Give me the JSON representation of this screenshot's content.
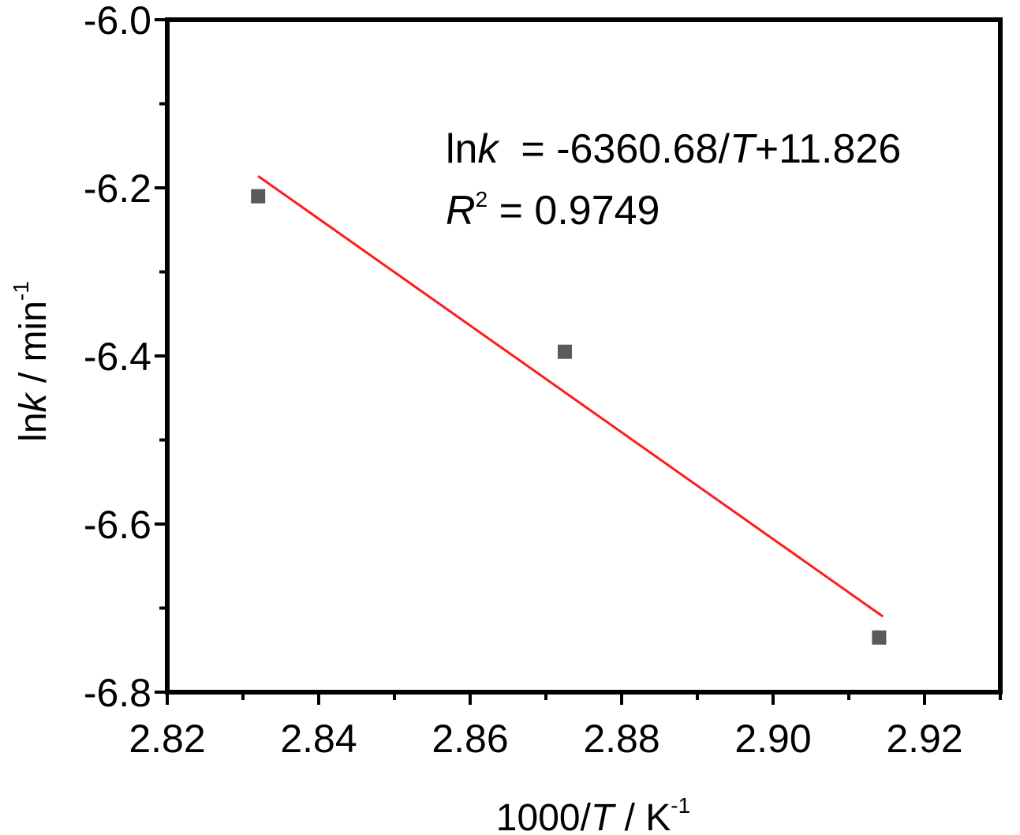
{
  "chart_data": {
    "type": "scatter",
    "title": "",
    "xlabel": {
      "prefix": "1000/",
      "var": "T",
      "unit": " / K",
      "sup": "-1"
    },
    "ylabel": {
      "prefix": "ln",
      "var": "k",
      "unit": " / min",
      "sup": "-1"
    },
    "xlim": [
      2.82,
      2.93
    ],
    "ylim": [
      -6.8,
      -6.0
    ],
    "x_ticks": [
      2.82,
      2.84,
      2.86,
      2.88,
      2.9,
      2.92
    ],
    "x_tick_labels": [
      "2.82",
      "2.84",
      "2.86",
      "2.88",
      "2.90",
      "2.92"
    ],
    "y_ticks": [
      -6.0,
      -6.2,
      -6.4,
      -6.6,
      -6.8
    ],
    "y_tick_labels": [
      "-6.0",
      "-6.2",
      "-6.4",
      "-6.6",
      "-6.8"
    ],
    "series": [
      {
        "type": "scatter",
        "marker": "square",
        "color": "#5a5a5a",
        "points": [
          {
            "x": 2.832,
            "y": -6.21
          },
          {
            "x": 2.8725,
            "y": -6.395
          },
          {
            "x": 2.914,
            "y": -6.735
          }
        ]
      },
      {
        "type": "line",
        "color": "#ff1a1a",
        "points": [
          {
            "x": 2.832,
            "y": -6.186
          },
          {
            "x": 2.9145,
            "y": -6.71
          }
        ]
      }
    ],
    "annotations": {
      "equation": {
        "lhs_prefix": "ln",
        "lhs_var": "k",
        "mid": "  = -6360.68/",
        "var": "T",
        "rest": "+11.826"
      },
      "r2": {
        "var": "R",
        "sup": "2",
        "rest": " = 0.9749"
      }
    },
    "grid": false,
    "legend": "none"
  }
}
